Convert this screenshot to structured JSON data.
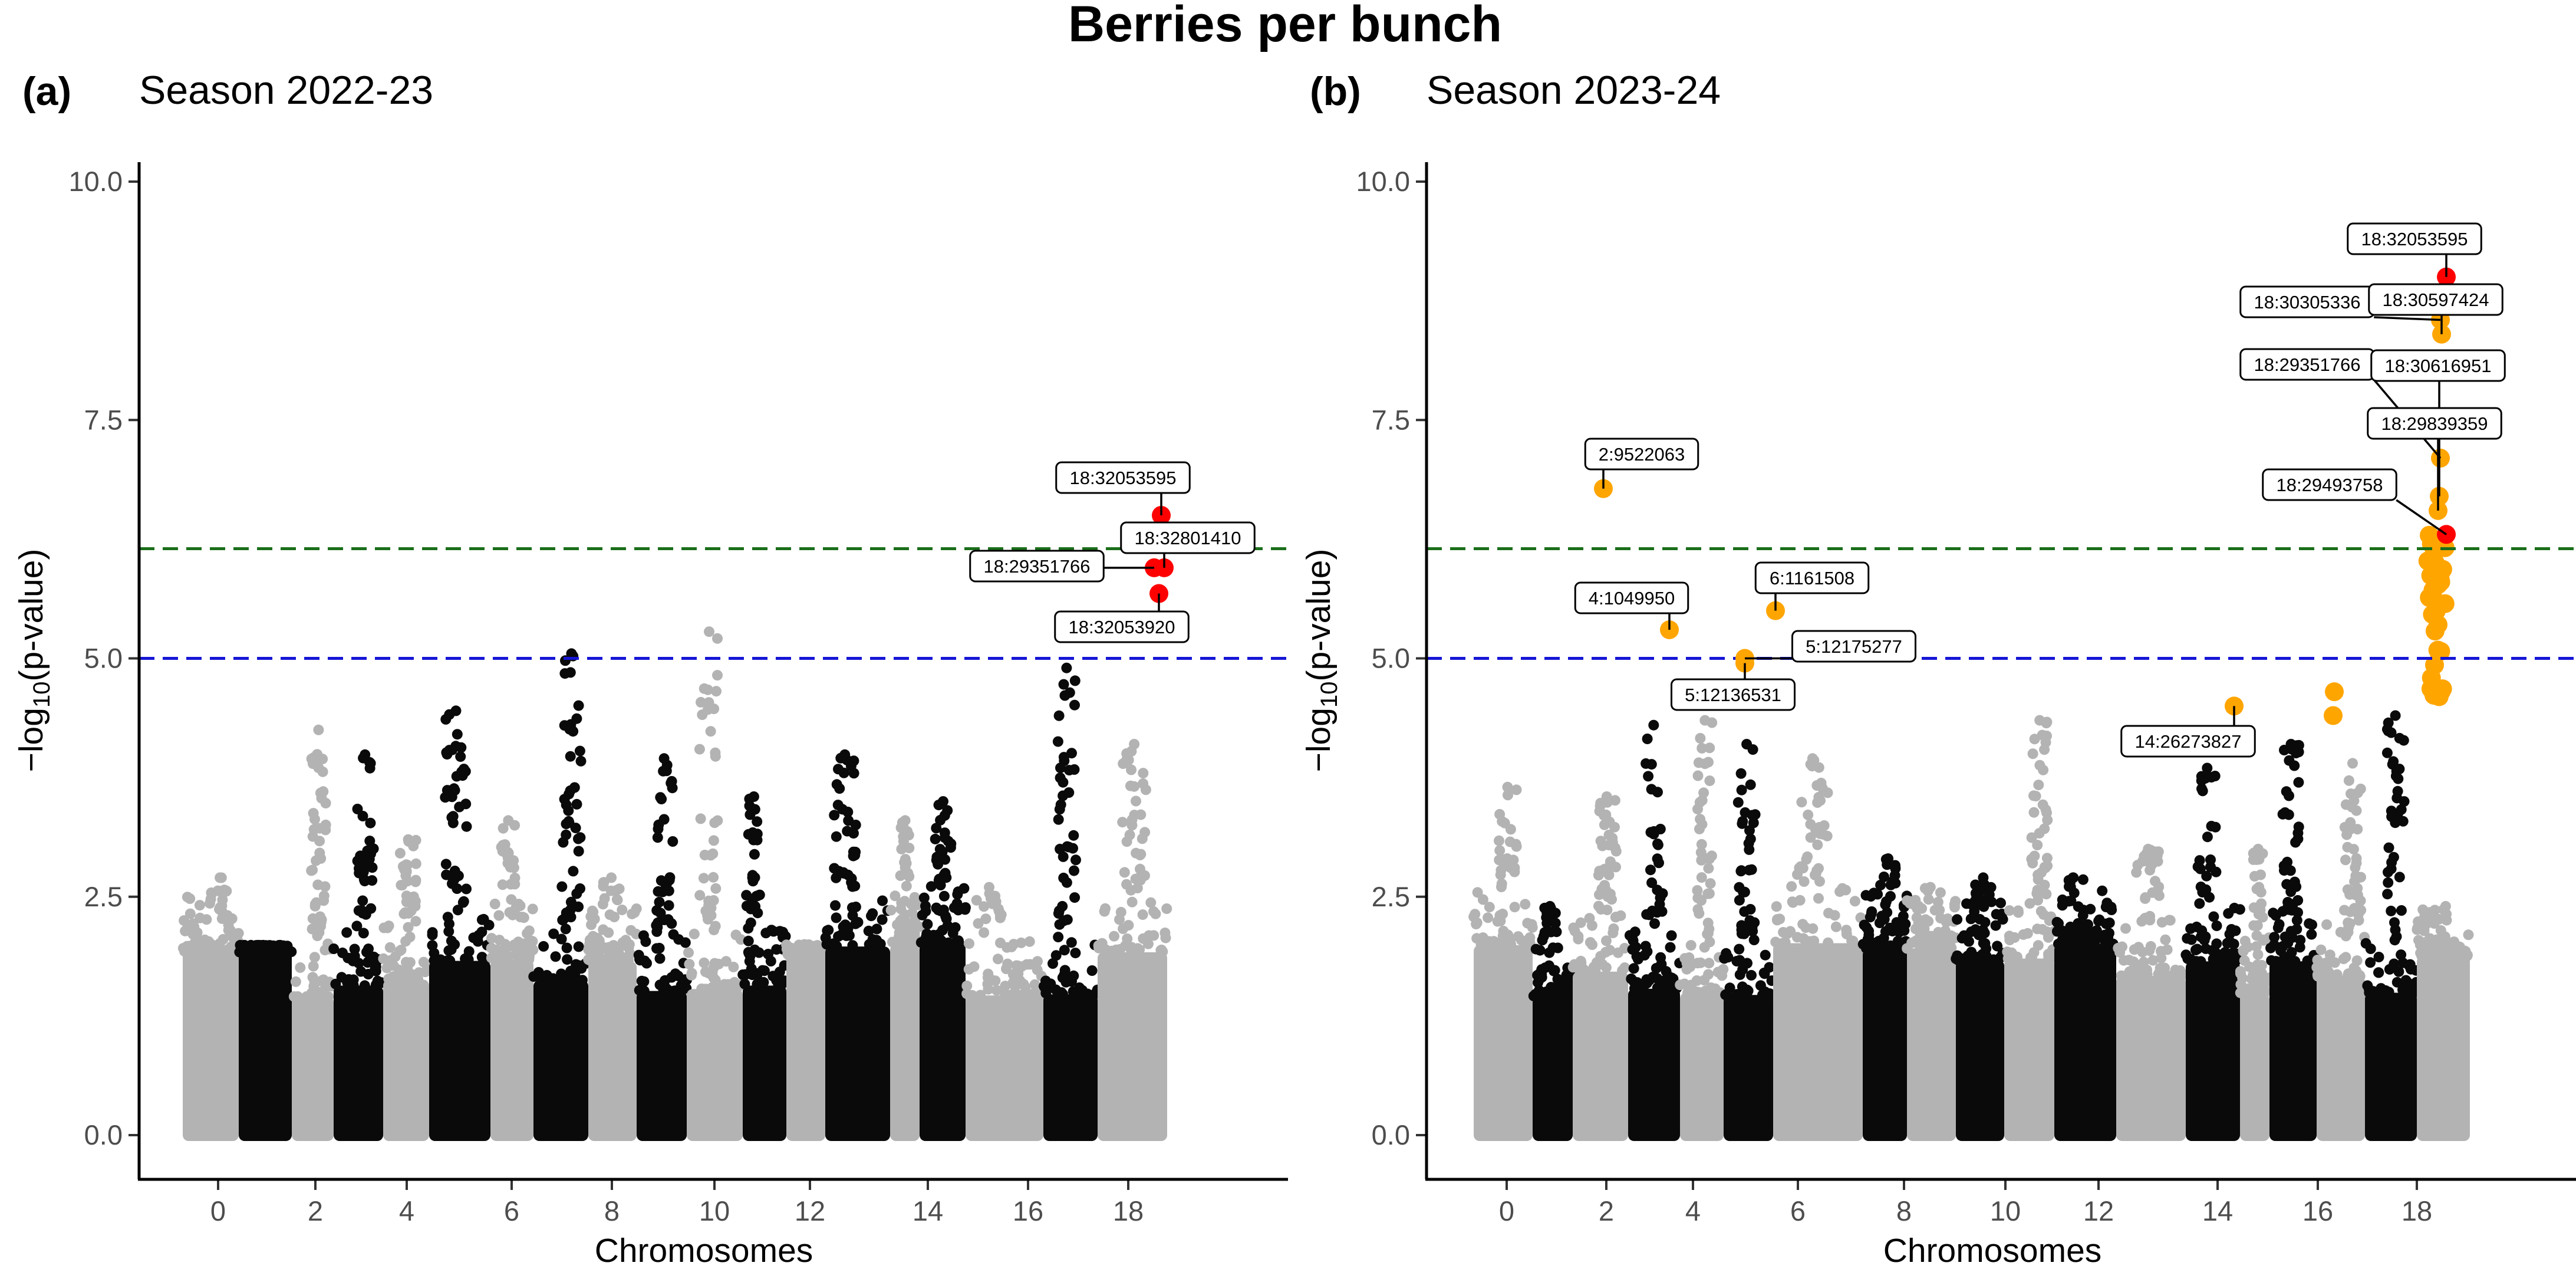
{
  "title": "Berries per bunch",
  "chart_data": [
    {
      "type": "scatter",
      "panel_label": "(a)",
      "title": "Season 2022-23",
      "xlabel": "Chromosomes",
      "ylabel": "−log10(p-value)",
      "ylim": [
        0,
        10
      ],
      "y_ticks": [
        "0.0",
        "2.5",
        "5.0",
        "7.5",
        "10.0"
      ],
      "x_ticks": [
        "0",
        "2",
        "4",
        "6",
        "8",
        "10",
        "12",
        "14",
        "16",
        "18"
      ],
      "thresholds": [
        {
          "name": "bonferroni",
          "value": 6.15,
          "color": "#1a6e1a"
        },
        {
          "name": "suggestive",
          "value": 5.0,
          "color": "#1515d6"
        }
      ],
      "background_peaks_by_chromosome": [
        2.7,
        1.9,
        4.25,
        3.99,
        3.1,
        4.45,
        3.3,
        5.05,
        2.7,
        3.95,
        5.28,
        3.55,
        2.0,
        3.99,
        3.3,
        3.5,
        2.6,
        4.9,
        4.1
      ],
      "highlighted": [
        {
          "label": "18:32053595",
          "chromosome": 18,
          "y": 6.5,
          "color": "#ff0000"
        },
        {
          "label": "18:32801410",
          "chromosome": 18,
          "y": 5.95,
          "color": "#ff0000"
        },
        {
          "label": "18:29351766",
          "chromosome": 18,
          "y": 5.95,
          "color": "#ff0000"
        },
        {
          "label": "18:32053920",
          "chromosome": 18,
          "y": 5.68,
          "color": "#ff0000"
        }
      ]
    },
    {
      "type": "scatter",
      "panel_label": "(b)",
      "title": "Season 2023-24",
      "xlabel": "Chromosomes",
      "ylabel": "−log10(p-value)",
      "ylim": [
        0,
        10
      ],
      "y_ticks": [
        "0.0",
        "2.5",
        "5.0",
        "7.5",
        "10.0"
      ],
      "x_ticks": [
        "0",
        "2",
        "4",
        "6",
        "8",
        "10",
        "12",
        "14",
        "16",
        "18"
      ],
      "thresholds": [
        {
          "name": "bonferroni",
          "value": 6.15,
          "color": "#1a6e1a"
        },
        {
          "name": "suggestive",
          "value": 5.0,
          "color": "#1515d6"
        }
      ],
      "background_peaks_by_chromosome": [
        3.65,
        2.4,
        3.55,
        4.3,
        4.35,
        4.1,
        3.95,
        2.9,
        2.6,
        2.7,
        4.35,
        2.7,
        3.0,
        3.85,
        3.0,
        4.1,
        3.9,
        4.4,
        2.4
      ],
      "highlighted": [
        {
          "label": "18:32053595",
          "chromosome": 18,
          "y": 9.0,
          "color": "#ff0000"
        },
        {
          "label": "18:30305336",
          "chromosome": 18,
          "y": 8.55,
          "color": "#ffa500"
        },
        {
          "label": "18:30597424",
          "chromosome": 18,
          "y": 8.4,
          "color": "#ffa500"
        },
        {
          "label": "18:29351766",
          "chromosome": 18,
          "y": 7.1,
          "color": "#ffa500"
        },
        {
          "label": "18:30616951",
          "chromosome": 18,
          "y": 6.7,
          "color": "#ffa500"
        },
        {
          "label": "18:29839359",
          "chromosome": 18,
          "y": 6.55,
          "color": "#ffa500"
        },
        {
          "label": "18:29493758",
          "chromosome": 18,
          "y": 6.3,
          "color": "#ff0000"
        },
        {
          "label": "2:9522063",
          "chromosome": 2,
          "y": 6.78,
          "color": "#ffa500"
        },
        {
          "label": "4:1049950",
          "chromosome": 4,
          "y": 5.3,
          "color": "#ffa500"
        },
        {
          "label": "6:1161508",
          "chromosome": 6,
          "y": 5.5,
          "color": "#ffa500"
        },
        {
          "label": "5:12175277",
          "chromosome": 5,
          "y": 5.0,
          "color": "#ffa500"
        },
        {
          "label": "5:12136531",
          "chromosome": 5,
          "y": 4.95,
          "color": "#ffa500"
        },
        {
          "label": "14:26273827",
          "chromosome": 14,
          "y": 4.5,
          "color": "#ffa500"
        }
      ]
    }
  ]
}
